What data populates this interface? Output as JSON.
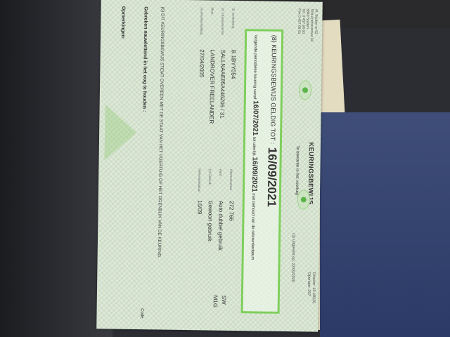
{
  "header": {
    "station_address": [
      "Af. Staden nr 52",
      "Sint-Andriesstraat 38",
      "8840 Staden",
      "Tel. 0 457 68 60",
      "Fax 0 457 68 61"
    ],
    "title": "KEURINGSBEWIJS",
    "subtitle": "Te bewaren in het voertuig",
    "dossier": "Dossier: 10 48220",
    "operator": "Operator: 297",
    "issued": "(3) Uitgereikt op: 22/09/2020"
  },
  "validity": {
    "heading": "(8) KEURINGSBEWIJS GELDIG TOT :",
    "valid_until": "16/09/2021",
    "next_prefix": "Volgende periodieke keuring vanaf",
    "next_from": "16/07/2021",
    "next_mid": "tot uiterlijk",
    "next_to": "16/09/2021",
    "next_suffix": "met behoud van de referentiedatum"
  },
  "fields": {
    "plate_label": "(1) Inschrijving",
    "plate": "B 1BYY054",
    "chassis_label": "(2) Chassisnummer",
    "chassis": "SALLNAAE85A446206 / 31",
    "make_label": "Merk",
    "make": "LANDROVER FREELANDER",
    "first_reg_label": "1e inverkeerstelling",
    "first_reg": "27/04/2005",
    "km_label": "Kilometerstand",
    "km": "272 766",
    "kind_label": "Aard",
    "kind": "Auto dubbel gebruik",
    "use_label": "(4) Gebruik",
    "use": "Gewoon gebruik",
    "ref_label": "Referentiedatum",
    "ref": "16/09",
    "body_code": "SW",
    "category": "M1G"
  },
  "statement": "(6) DIT KEURINGSBEWIJS STEMT OVEREEN MET DE STAAT VAN HET VOERTUIG OP HET OGENBLIK VAN DE KEURING.",
  "defects_heading": "Gebreken nauwlettend in het oog te houden :",
  "remarks_heading": "Opmerkingen:",
  "code_label": "Code"
}
